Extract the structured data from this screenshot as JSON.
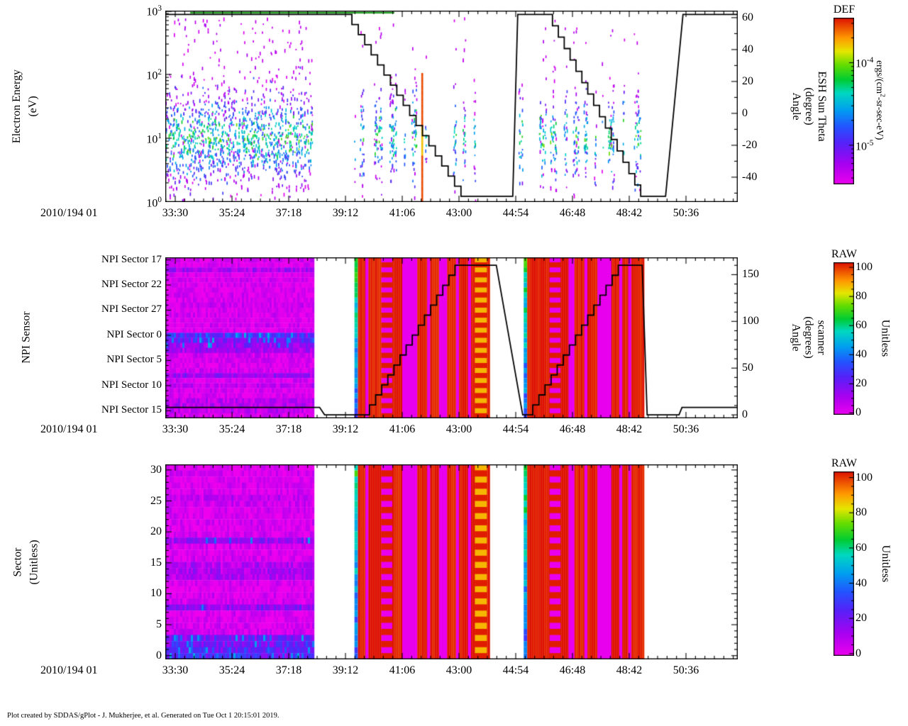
{
  "footer": "Plot created by SDDAS/gPlot - J. Mukherjee, et al.  Generated on Tue Oct 1 20:15:01 2019.",
  "x_axis": {
    "prefix": "2010/194 01",
    "tick_labels": [
      "33:30",
      "35:24",
      "37:18",
      "39:12",
      "41:06",
      "43:00",
      "44:54",
      "46:48",
      "48:42",
      "50:36"
    ],
    "tick_seconds": [
      2010,
      2124,
      2238,
      2352,
      2466,
      2580,
      2694,
      2808,
      2922,
      3036
    ],
    "minor_step_seconds": 19,
    "range_seconds": [
      1990,
      3140
    ]
  },
  "colormap": {
    "stops": [
      [
        0,
        "#ee00ee"
      ],
      [
        0.12,
        "#aa00f0"
      ],
      [
        0.25,
        "#5522f8"
      ],
      [
        0.35,
        "#2255ff"
      ],
      [
        0.45,
        "#00a0f0"
      ],
      [
        0.55,
        "#00d8c0"
      ],
      [
        0.63,
        "#00cc33"
      ],
      [
        0.72,
        "#66dd00"
      ],
      [
        0.8,
        "#e6e600"
      ],
      [
        0.88,
        "#ff9900"
      ],
      [
        1,
        "#dd1100"
      ]
    ]
  },
  "chart_data": [
    {
      "type": "heatmap",
      "name": "electron-energy-spectrogram",
      "ylabel_lines": [
        "Electron Energy",
        "(eV)"
      ],
      "y_axis": {
        "scale": "log",
        "log_range": [
          0,
          3
        ],
        "ticks": [
          {
            "exp": "3",
            "logE": 3
          },
          {
            "exp": "2",
            "logE": 2
          },
          {
            "exp": "1",
            "logE": 1
          },
          {
            "exp": "0",
            "logE": 0
          }
        ]
      },
      "right_axis": {
        "label_lines": [
          "Angle",
          "(degree)",
          "ESH Sun Theta"
        ],
        "ticks": [
          60,
          40,
          20,
          0,
          -20,
          -40
        ],
        "range": [
          -55.6,
          64.4
        ]
      },
      "colorbar": {
        "title": "DEF",
        "unit": {
          "pre": "ergs/(cm",
          "sup": "2",
          "post": "-sr-sec-eV)"
        },
        "ticks": [
          {
            "exp": "-4",
            "frac": 0.73
          },
          {
            "exp": "-5",
            "frac": 0.235
          }
        ]
      },
      "scatter_regions": [
        {
          "t0": 1990,
          "t1": 2285,
          "density": 1.0,
          "gappy": false,
          "seed": 11
        },
        {
          "t0": 2370,
          "t1": 2612,
          "density": 0.9,
          "gappy": true,
          "seed": 22
        },
        {
          "t0": 2700,
          "t1": 2948,
          "density": 0.85,
          "gappy": true,
          "seed": 33
        }
      ],
      "top_band": {
        "t0": 2040,
        "t1": 2450,
        "logE": 2.97,
        "color": "#1f9a1f"
      },
      "event_line": {
        "t": 2506,
        "logE0": 0.02,
        "logE1": 2.02
      },
      "line": {
        "color": "#000000",
        "width": 1.8,
        "segments": [
          {
            "t0": 1990,
            "t1": 2352,
            "v0": 62,
            "v1": 62,
            "mode": "flat"
          },
          {
            "t0": 2352,
            "t1": 2584,
            "v0": 62,
            "v1": -52,
            "mode": "stairs",
            "steps": 18
          },
          {
            "t0": 2584,
            "t1": 2688,
            "v0": -52,
            "v1": -52,
            "mode": "flat"
          },
          {
            "t0": 2688,
            "t1": 2698,
            "v0": -52,
            "v1": 62,
            "mode": "ramp"
          },
          {
            "t0": 2698,
            "t1": 2756,
            "v0": 62,
            "v1": 62,
            "mode": "flat"
          },
          {
            "t0": 2756,
            "t1": 2945,
            "v0": 62,
            "v1": -52,
            "mode": "stairs",
            "steps": 16
          },
          {
            "t0": 2945,
            "t1": 2995,
            "v0": -52,
            "v1": -52,
            "mode": "flat"
          },
          {
            "t0": 2995,
            "t1": 3030,
            "v0": -52,
            "v1": 62,
            "mode": "ramp"
          },
          {
            "t0": 3030,
            "t1": 3140,
            "v0": 62,
            "v1": 62,
            "mode": "flat"
          }
        ]
      }
    },
    {
      "type": "heatmap",
      "name": "npi-sensor-spectrogram",
      "ylabel_lines": [
        "NPI Sensor"
      ],
      "n_rows": 32,
      "row_labels": [
        {
          "row": 0,
          "label": "NPI Sector 17"
        },
        {
          "row": 5,
          "label": "NPI Sector 22"
        },
        {
          "row": 10,
          "label": "NPI Sector 27"
        },
        {
          "row": 15,
          "label": "NPI Sector 0"
        },
        {
          "row": 20,
          "label": "NPI Sector 5"
        },
        {
          "row": 25,
          "label": "NPI Sector 10"
        },
        {
          "row": 30,
          "label": "NPI Sector 15"
        }
      ],
      "right_axis": {
        "label_lines": [
          "Angle",
          "(degrees)",
          "scanner"
        ],
        "ticks": [
          0,
          50,
          100,
          150
        ],
        "range": [
          -3.7,
          168.5
        ]
      },
      "colorbar": {
        "title": "RAW",
        "unit": {
          "pre": "Unitless",
          "sup": "",
          "post": ""
        },
        "ticks": [
          {
            "value": "100",
            "frac": 0.967
          },
          {
            "value": "80",
            "frac": 0.776
          },
          {
            "value": "60",
            "frac": 0.585
          },
          {
            "value": "40",
            "frac": 0.394
          },
          {
            "value": "20",
            "frac": 0.203
          },
          {
            "value": "0",
            "frac": 0.012
          }
        ]
      },
      "blocks": [
        {
          "kind": "rows",
          "t0": 1990,
          "t1": 2285,
          "noise": 6,
          "seed": 101,
          "row_values": [
            4,
            3,
            12,
            3,
            4,
            3,
            3,
            4,
            3,
            6,
            3,
            4,
            3,
            4,
            3,
            26,
            20,
            16,
            12,
            5,
            4,
            3,
            4,
            14,
            4,
            7,
            4,
            3,
            8,
            9,
            8,
            4
          ]
        },
        {
          "kind": "edge",
          "t0": 2370,
          "t1": 2377,
          "seed": 102
        },
        {
          "kind": "solid",
          "t0": 2377,
          "t1": 2638,
          "value": 99,
          "noise": 2,
          "seed": 103
        },
        {
          "kind": "stripe",
          "t0": 2392,
          "t1": 2398,
          "value": 1
        },
        {
          "kind": "dash",
          "t0": 2424,
          "t1": 2446,
          "value": 1,
          "alt": 99
        },
        {
          "kind": "stripe",
          "t0": 2466,
          "t1": 2496,
          "value": 1
        },
        {
          "kind": "stripe",
          "t0": 2516,
          "t1": 2522,
          "value": 1
        },
        {
          "kind": "stripe",
          "t0": 2540,
          "t1": 2556,
          "value": 1
        },
        {
          "kind": "stripe",
          "t0": 2574,
          "t1": 2580,
          "value": 1
        },
        {
          "kind": "stripe",
          "t0": 2598,
          "t1": 2604,
          "value": 1
        },
        {
          "kind": "dash",
          "t0": 2612,
          "t1": 2636,
          "value": 85,
          "alt": 99
        },
        {
          "kind": "edge",
          "t0": 2710,
          "t1": 2717,
          "seed": 104
        },
        {
          "kind": "solid",
          "t0": 2717,
          "t1": 2952,
          "value": 99,
          "noise": 2,
          "seed": 105
        },
        {
          "kind": "dash",
          "t0": 2762,
          "t1": 2784,
          "value": 1,
          "alt": 99
        },
        {
          "kind": "stripe",
          "t0": 2800,
          "t1": 2812,
          "value": 1
        },
        {
          "kind": "stripe",
          "t0": 2832,
          "t1": 2838,
          "value": 1
        },
        {
          "kind": "stripe",
          "t0": 2858,
          "t1": 2886,
          "value": 1
        },
        {
          "kind": "stripe",
          "t0": 2902,
          "t1": 2908,
          "value": 1
        },
        {
          "kind": "stripe",
          "t0": 2920,
          "t1": 2926,
          "value": 1
        }
      ],
      "line": {
        "color": "#000000",
        "width": 1.8,
        "segments": [
          {
            "t0": 1990,
            "t1": 2300,
            "v0": 8,
            "v1": 8,
            "mode": "flat"
          },
          {
            "t0": 2300,
            "t1": 2310,
            "v0": 8,
            "v1": 0,
            "mode": "ramp"
          },
          {
            "t0": 2310,
            "t1": 2388,
            "v0": 0,
            "v1": 0,
            "mode": "flat"
          },
          {
            "t0": 2388,
            "t1": 2572,
            "v0": 0,
            "v1": 160,
            "mode": "stairs",
            "steps": 15
          },
          {
            "t0": 2572,
            "t1": 2655,
            "v0": 160,
            "v1": 160,
            "mode": "flat"
          },
          {
            "t0": 2655,
            "t1": 2708,
            "v0": 160,
            "v1": 0,
            "mode": "ramp"
          },
          {
            "t0": 2708,
            "t1": 2716,
            "v0": 0,
            "v1": 0,
            "mode": "flat"
          },
          {
            "t0": 2716,
            "t1": 2900,
            "v0": 0,
            "v1": 160,
            "mode": "stairs",
            "steps": 15
          },
          {
            "t0": 2900,
            "t1": 2948,
            "v0": 160,
            "v1": 160,
            "mode": "flat"
          },
          {
            "t0": 2948,
            "t1": 2958,
            "v0": 160,
            "v1": 0,
            "mode": "ramp"
          },
          {
            "t0": 2958,
            "t1": 3022,
            "v0": 0,
            "v1": 0,
            "mode": "flat"
          },
          {
            "t0": 3022,
            "t1": 3028,
            "v0": 0,
            "v1": 8,
            "mode": "ramp"
          },
          {
            "t0": 3028,
            "t1": 3140,
            "v0": 8,
            "v1": 8,
            "mode": "flat"
          }
        ]
      }
    },
    {
      "type": "heatmap",
      "name": "sector-spectrogram",
      "ylabel_lines": [
        "Sector",
        "(Unitless)"
      ],
      "n_rows": 32,
      "y_axis": {
        "ticks": [
          30,
          25,
          20,
          15,
          10,
          5,
          0
        ],
        "range": [
          -0.6,
          30.9
        ]
      },
      "colorbar": {
        "title": "RAW",
        "unit": {
          "pre": "Unitless",
          "sup": "",
          "post": ""
        },
        "ticks": [
          {
            "value": "100",
            "frac": 0.967
          },
          {
            "value": "80",
            "frac": 0.776
          },
          {
            "value": "60",
            "frac": 0.585
          },
          {
            "value": "40",
            "frac": 0.394
          },
          {
            "value": "20",
            "frac": 0.203
          },
          {
            "value": "0",
            "frac": 0.012
          }
        ]
      },
      "blocks": [
        {
          "kind": "rows",
          "t0": 1990,
          "t1": 2285,
          "noise": 6,
          "seed": 201,
          "row_values": [
            3,
            4,
            3,
            4,
            3,
            8,
            6,
            4,
            3,
            4,
            3,
            4,
            15,
            4,
            3,
            4,
            10,
            12,
            10,
            4,
            3,
            4,
            4,
            16,
            4,
            3,
            4,
            5,
            20,
            22,
            24,
            26
          ]
        },
        {
          "kind": "edge",
          "t0": 2370,
          "t1": 2377,
          "seed": 202
        },
        {
          "kind": "solid",
          "t0": 2377,
          "t1": 2638,
          "value": 99,
          "noise": 2,
          "seed": 203
        },
        {
          "kind": "stripe",
          "t0": 2392,
          "t1": 2398,
          "value": 1
        },
        {
          "kind": "dash",
          "t0": 2424,
          "t1": 2446,
          "value": 1,
          "alt": 99
        },
        {
          "kind": "stripe",
          "t0": 2466,
          "t1": 2496,
          "value": 1
        },
        {
          "kind": "stripe",
          "t0": 2516,
          "t1": 2522,
          "value": 1
        },
        {
          "kind": "stripe",
          "t0": 2540,
          "t1": 2556,
          "value": 1
        },
        {
          "kind": "stripe",
          "t0": 2574,
          "t1": 2580,
          "value": 1
        },
        {
          "kind": "stripe",
          "t0": 2598,
          "t1": 2604,
          "value": 1
        },
        {
          "kind": "dash",
          "t0": 2612,
          "t1": 2636,
          "value": 85,
          "alt": 99
        },
        {
          "kind": "edge",
          "t0": 2710,
          "t1": 2717,
          "seed": 204
        },
        {
          "kind": "solid",
          "t0": 2717,
          "t1": 2952,
          "value": 99,
          "noise": 2,
          "seed": 205
        },
        {
          "kind": "dash",
          "t0": 2762,
          "t1": 2784,
          "value": 1,
          "alt": 99
        },
        {
          "kind": "stripe",
          "t0": 2800,
          "t1": 2812,
          "value": 1
        },
        {
          "kind": "stripe",
          "t0": 2832,
          "t1": 2838,
          "value": 1
        },
        {
          "kind": "stripe",
          "t0": 2858,
          "t1": 2886,
          "value": 1
        },
        {
          "kind": "stripe",
          "t0": 2902,
          "t1": 2908,
          "value": 1
        },
        {
          "kind": "stripe",
          "t0": 2920,
          "t1": 2926,
          "value": 1
        }
      ]
    }
  ]
}
